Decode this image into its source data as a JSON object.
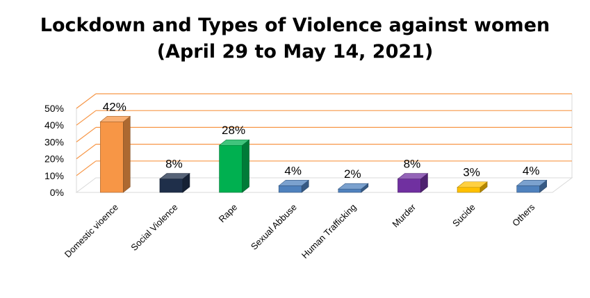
{
  "chart_data": {
    "type": "bar",
    "title_line1": "Lockdown and Types of Violence against women",
    "title_line2": "(April 29 to May 14, 2021)",
    "xlabel": "",
    "ylabel": "",
    "ylim": [
      0,
      50
    ],
    "yticks": [
      0,
      10,
      20,
      30,
      40,
      50
    ],
    "ytick_labels": [
      "0%",
      "10%",
      "20%",
      "30%",
      "40%",
      "50%"
    ],
    "grid": true,
    "three_d": true,
    "categories": [
      "Domestic vioence",
      "Social Violence",
      "Rape",
      "Sexual Abbuse",
      "Human Trafficking",
      "Murder",
      "Sucide",
      "Others"
    ],
    "values": [
      42,
      8,
      28,
      4,
      2,
      8,
      3,
      4
    ],
    "data_labels": [
      "42%",
      "8%",
      "28%",
      "4%",
      "2%",
      "8%",
      "3%",
      "4%"
    ],
    "colors": [
      "#F79646",
      "#1F2F4A",
      "#00B050",
      "#4F81BD",
      "#4F81BD",
      "#7030A0",
      "#FFC000",
      "#4F81BD"
    ],
    "gridline_color": "#F79646",
    "wall_color": "#D9D9D9"
  }
}
